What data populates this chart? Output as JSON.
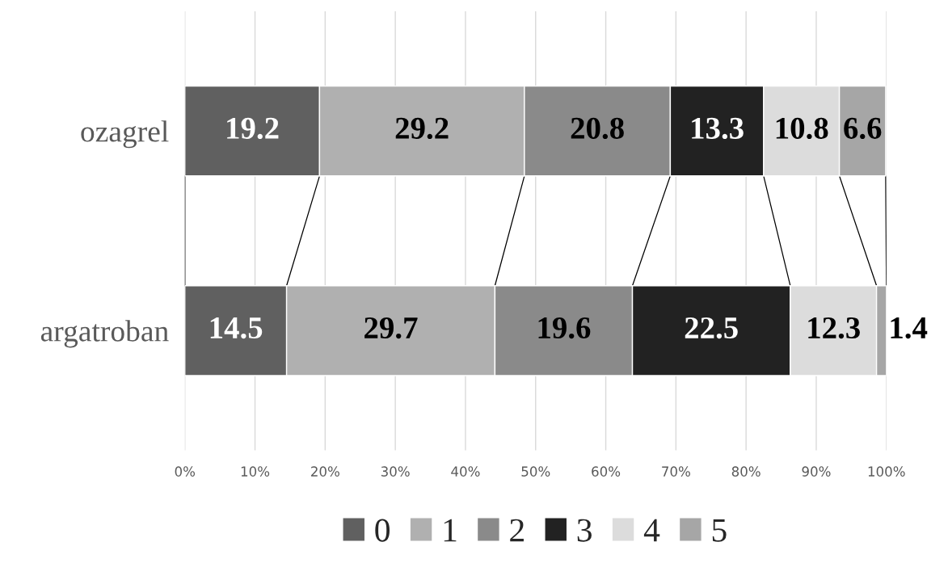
{
  "chart_data": {
    "type": "bar",
    "orientation": "horizontal",
    "stacked": true,
    "categories": [
      "ozagrel",
      "argatroban"
    ],
    "series": [
      {
        "name": "0",
        "color": "#606060",
        "values": [
          19.2,
          14.5
        ]
      },
      {
        "name": "1",
        "color": "#b0b0b0",
        "values": [
          29.2,
          29.7
        ]
      },
      {
        "name": "2",
        "color": "#8a8a8a",
        "values": [
          20.8,
          19.6
        ]
      },
      {
        "name": "3",
        "color": "#222222",
        "values": [
          13.3,
          22.5
        ]
      },
      {
        "name": "4",
        "color": "#dcdcdc",
        "values": [
          10.8,
          12.3
        ]
      },
      {
        "name": "5",
        "color": "#a6a6a6",
        "values": [
          6.6,
          1.4
        ]
      }
    ],
    "xlim": [
      0,
      100
    ],
    "xticks": [
      {
        "value": 0,
        "label": "0%"
      },
      {
        "value": 10,
        "label": "10%"
      },
      {
        "value": 20,
        "label": "20%"
      },
      {
        "value": 30,
        "label": "30%"
      },
      {
        "value": 40,
        "label": "40%"
      },
      {
        "value": 50,
        "label": "50%"
      },
      {
        "value": 60,
        "label": "60%"
      },
      {
        "value": 70,
        "label": "70%"
      },
      {
        "value": 80,
        "label": "80%"
      },
      {
        "value": 90,
        "label": "90%"
      },
      {
        "value": 100,
        "label": "100%"
      }
    ],
    "grid": "x",
    "legend": "bottom",
    "data_labels": true
  }
}
